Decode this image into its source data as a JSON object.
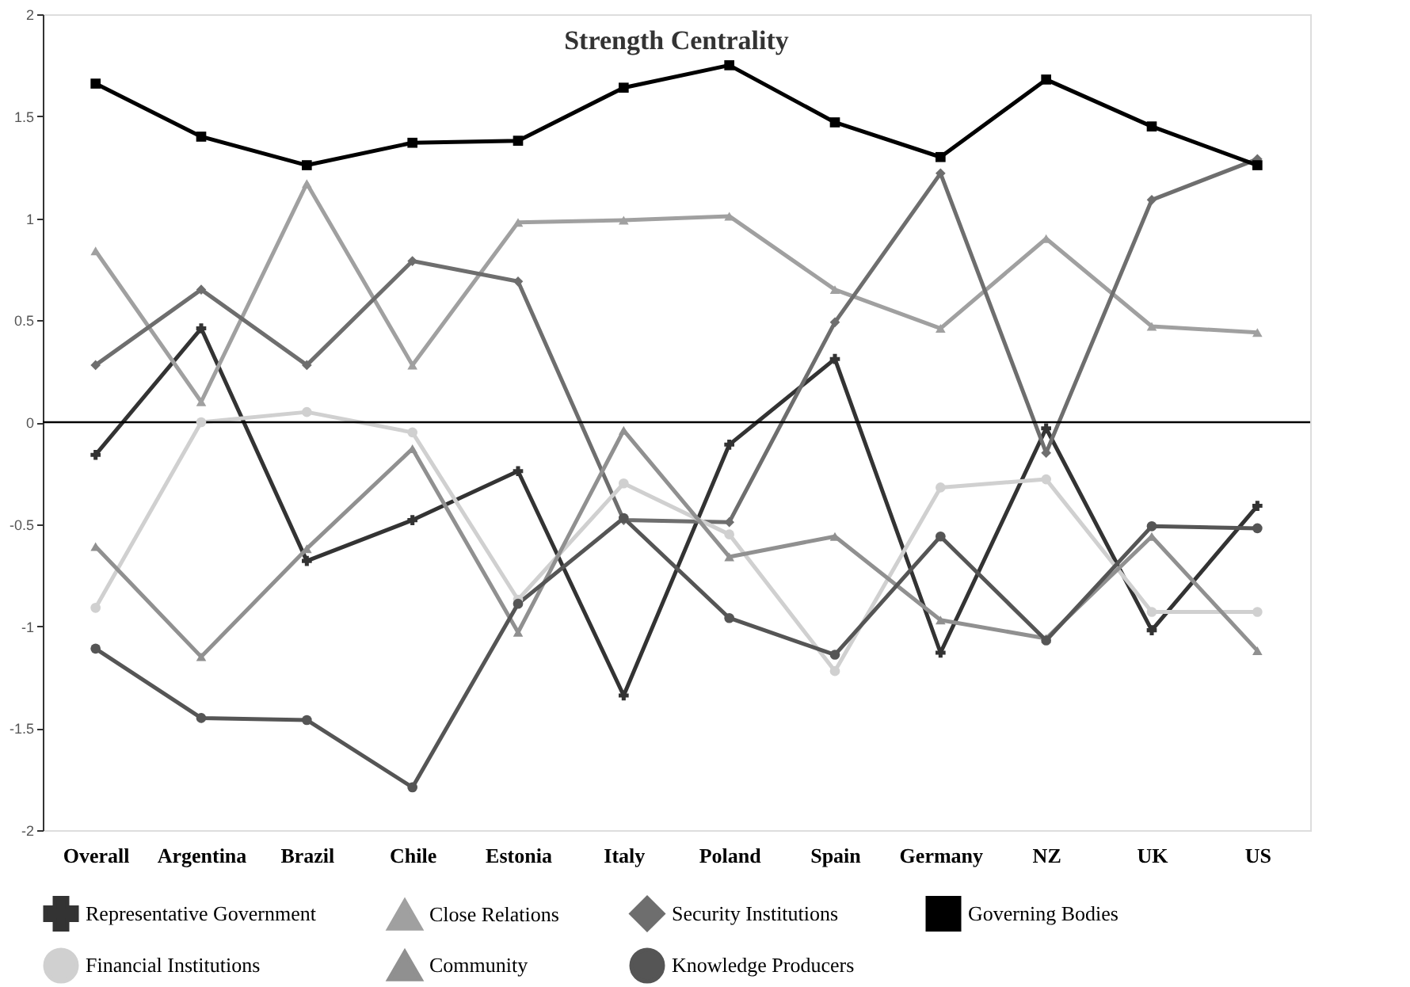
{
  "chart_data": {
    "type": "line",
    "title": "Strength Centrality",
    "categories": [
      "Overall",
      "Argentina",
      "Brazil",
      "Chile",
      "Estonia",
      "Italy",
      "Poland",
      "Spain",
      "Germany",
      "NZ",
      "UK",
      "US"
    ],
    "series": [
      {
        "name": "Representative Government",
        "color": "#333333",
        "marker": "cross",
        "values": [
          -0.16,
          0.46,
          -0.68,
          -0.48,
          -0.24,
          -1.34,
          -0.11,
          0.31,
          -1.13,
          -0.03,
          -1.02,
          -0.41
        ]
      },
      {
        "name": "Close Relations",
        "color": "#a0a0a0",
        "marker": "triangle",
        "values": [
          0.84,
          0.1,
          1.17,
          0.28,
          0.98,
          0.99,
          1.01,
          0.65,
          0.46,
          0.9,
          0.47,
          0.44
        ]
      },
      {
        "name": "Security Institutions",
        "color": "#6e6e6e",
        "marker": "diamond",
        "values": [
          0.28,
          0.65,
          0.28,
          0.79,
          0.69,
          -0.48,
          -0.49,
          0.49,
          1.22,
          -0.15,
          1.09,
          1.29
        ]
      },
      {
        "name": "Governing Bodies",
        "color": "#000000",
        "marker": "square",
        "values": [
          1.66,
          1.4,
          1.26,
          1.37,
          1.38,
          1.64,
          1.75,
          1.47,
          1.3,
          1.68,
          1.45,
          1.26
        ]
      },
      {
        "name": "Financial Institutions",
        "color": "#d0d0d0",
        "marker": "circle",
        "values": [
          -0.91,
          0.0,
          0.05,
          -0.05,
          -0.87,
          -0.3,
          -0.55,
          -1.22,
          -0.32,
          -0.28,
          -0.93,
          -0.93
        ]
      },
      {
        "name": "Community",
        "color": "#909090",
        "marker": "triangle",
        "values": [
          -0.61,
          -1.15,
          -0.62,
          -0.13,
          -1.03,
          -0.04,
          -0.66,
          -0.56,
          -0.97,
          -1.06,
          -0.56,
          -1.12
        ]
      },
      {
        "name": "Knowledge Producers",
        "color": "#555555",
        "marker": "circle",
        "values": [
          -1.11,
          -1.45,
          -1.46,
          -1.79,
          -0.89,
          -0.47,
          -0.96,
          -1.14,
          -0.56,
          -1.07,
          -0.51,
          -0.52
        ]
      }
    ],
    "ylim": [
      -2,
      2
    ],
    "yticks": [
      -2,
      -1.5,
      -1,
      -0.5,
      0,
      0.5,
      1,
      1.5,
      2
    ],
    "ref_lines": [
      {
        "axis": "y",
        "value": 0,
        "color": "#000000"
      }
    ],
    "grid": false,
    "legend": "bottom"
  }
}
